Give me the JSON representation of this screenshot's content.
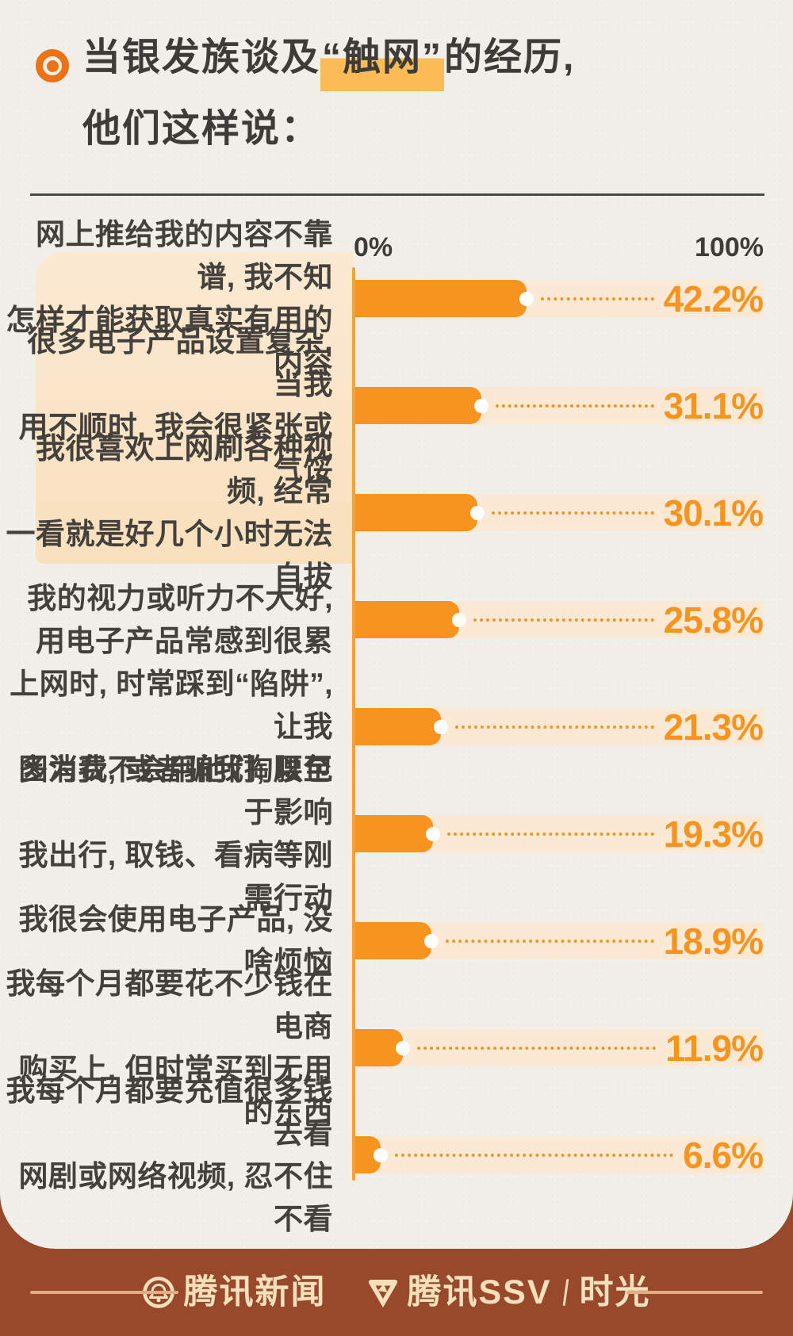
{
  "page": {
    "background_color": "#98492B",
    "card_color": "#F1EFE9"
  },
  "header": {
    "bullet_color": "#EC7218",
    "highlight_color": "#FBBC55",
    "title_prefix": "当银发族谈及",
    "title_highlight": "“触网”",
    "title_suffix": "的经历,",
    "title_line2": "他们这样说："
  },
  "axis": {
    "min": "0%",
    "max": "100%"
  },
  "chart_data": {
    "type": "bar",
    "orientation": "horizontal",
    "unit": "%",
    "xlim": [
      0,
      100
    ],
    "axis_ticks": [
      "0%",
      "100%"
    ],
    "grid": false,
    "bar_color": "#F79420",
    "track_color": "#FAE9D4",
    "value_label_color": "#F79420",
    "categories": [
      "网上推给我的内容不靠谱, 我不知怎样才能获取真实有用的内容",
      "很多电子产品设置复杂, 当我用不顺时, 我会很紧张或气馁",
      "我很喜欢上网刷各种视频, 经常一看就是好几个小时无法自拔",
      "我的视力或听力不大好, 用电子产品常感到很累",
      "上网时, 时常踩到“陷阱”, 让我多消费, 或者骗我掏腰包",
      "因为我不会用他们, 以至于影响我出行, 取钱、看病等刚需行动",
      "我很会使用电子产品, 没啥烦恼",
      "我每个月都要花不少钱在电商购买上, 但时常买到无用的东西",
      "我每个月都要充值很多钱去看网剧或网络视频, 忍不住不看"
    ],
    "values": [
      42.2,
      31.1,
      30.1,
      25.8,
      21.3,
      19.3,
      18.9,
      11.9,
      6.6
    ]
  },
  "rows": [
    {
      "line1": "网上推给我的内容不靠谱, 我不知",
      "line2": "怎样才能获取真实有用的内容",
      "value_label": "42.2%"
    },
    {
      "line1": "很多电子产品设置复杂, 当我",
      "line2": "用不顺时, 我会很紧张或气馁",
      "value_label": "31.1%"
    },
    {
      "line1": "我很喜欢上网刷各种视频, 经常",
      "line2": "一看就是好几个小时无法自拔",
      "value_label": "30.1%"
    },
    {
      "line1": "我的视力或听力不大好,",
      "line2": "用电子产品常感到很累",
      "value_label": "25.8%"
    },
    {
      "line1": "上网时, 时常踩到“陷阱”, 让我",
      "line2": "多消费, 或者骗我掏腰包",
      "value_label": "21.3%"
    },
    {
      "line1": "因为我不会用他们, 以至于影响",
      "line2": "我出行, 取钱、看病等刚需行动",
      "value_label": "19.3%"
    },
    {
      "line1": "我很会使用电子产品, 没啥烦恼",
      "value_label": "18.9%"
    },
    {
      "line1": "我每个月都要花不少钱在电商",
      "line2": "购买上, 但时常买到无用的东西",
      "value_label": "11.9%"
    },
    {
      "line1": "我每个月都要充值很多钱去看",
      "line2": "网剧或网络视频, 忍不住不看",
      "value_label": "6.6%"
    }
  ],
  "footer": {
    "brand1": "腾讯新闻",
    "brand2": "腾讯SSV",
    "brand3": "时光"
  }
}
